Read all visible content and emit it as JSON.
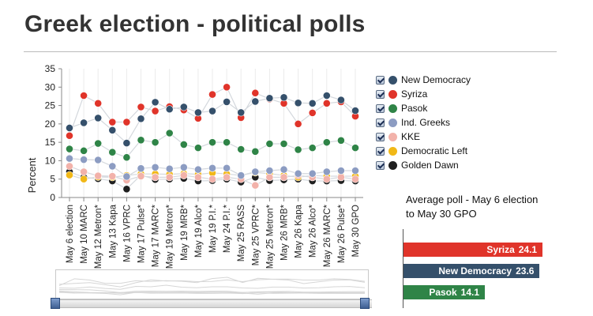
{
  "title": "Greek election - political polls",
  "chart_data": {
    "type": "line",
    "ylabel": "Percent",
    "ylim": [
      0,
      35
    ],
    "yticks": [
      0,
      5,
      10,
      15,
      20,
      25,
      30,
      35
    ],
    "categories": [
      "May 6 election",
      "May 10 MARC",
      "May 12 Metron*",
      "May 13 Kapa",
      "May 16 VPRC",
      "May 17 Pulse*",
      "May 17 MARC*",
      "May 19 Metron*",
      "May 19 MRB*",
      "May 19 Alco*",
      "May 19 P.I.*",
      "May 24 P.I.*",
      "May 25 RASS",
      "May 25 VPRC*",
      "May 25 Metron*",
      "May 26 MRB*",
      "May 26 Kapa",
      "May 26 Alco*",
      "May 26 MARC*",
      "May 26 Pulse*",
      "May 30 GPO"
    ],
    "series": [
      {
        "name": "New Democracy",
        "color": "#35506b",
        "values": [
          18.9,
          20.3,
          21.6,
          18.3,
          14.8,
          21.4,
          25.9,
          24.0,
          24.6,
          23.1,
          23.5,
          26.0,
          23.1,
          26.1,
          27.0,
          27.2,
          25.7,
          25.6,
          27.7,
          26.5,
          23.6
        ]
      },
      {
        "name": "Syriza",
        "color": "#e0342a",
        "values": [
          16.8,
          27.7,
          25.6,
          20.5,
          20.5,
          24.6,
          23.5,
          24.7,
          23.8,
          21.5,
          28.0,
          30.0,
          21.7,
          28.4,
          26.8,
          25.6,
          20.0,
          23.0,
          25.6,
          26.0,
          22.1
        ]
      },
      {
        "name": "Pasok",
        "color": "#2f8447",
        "values": [
          13.2,
          12.7,
          14.7,
          12.3,
          10.9,
          15.6,
          15.0,
          17.5,
          14.4,
          13.5,
          15.0,
          15.0,
          13.1,
          12.5,
          14.6,
          14.6,
          13.0,
          13.5,
          15.0,
          15.5,
          13.5
        ]
      },
      {
        "name": "Ind. Greeks",
        "color": "#8c9cc2",
        "values": [
          10.6,
          10.3,
          10.2,
          8.5,
          5.7,
          7.9,
          8.2,
          7.8,
          8.2,
          7.6,
          8.0,
          8.0,
          6.0,
          7.0,
          7.3,
          7.6,
          6.5,
          6.5,
          7.0,
          7.3,
          7.3
        ]
      },
      {
        "name": "KKE",
        "color": "#f2b2aa",
        "values": [
          8.5,
          7.0,
          5.9,
          5.8,
          4.7,
          5.8,
          5.5,
          5.5,
          6.0,
          5.5,
          5.0,
          5.5,
          5.0,
          3.3,
          5.5,
          5.5,
          6.0,
          5.5,
          5.0,
          5.5,
          5.0
        ]
      },
      {
        "name": "Democratic Left",
        "color": "#f1b817",
        "values": [
          6.1,
          5.0,
          5.6,
          5.5,
          6.0,
          6.4,
          6.4,
          6.3,
          6.5,
          6.3,
          6.7,
          6.4,
          6.0,
          6.8,
          6.5,
          6.0,
          5.5,
          6.0,
          5.8,
          5.8,
          5.8
        ]
      },
      {
        "name": "Golden Dawn",
        "color": "#1f1f1f",
        "values": [
          7.0,
          5.5,
          5.1,
          4.5,
          2.3,
          6.1,
          4.9,
          5.0,
          5.2,
          4.5,
          4.6,
          5.0,
          4.2,
          5.5,
          4.6,
          4.8,
          5.0,
          4.5,
          4.5,
          4.6,
          4.5
        ]
      }
    ]
  },
  "average": {
    "title": "Average poll - May 6 election to May 30 GPO",
    "max": 26,
    "bars": [
      {
        "label": "Syriza",
        "value": "24.1",
        "color": "#e0342a"
      },
      {
        "label": "New Democracy",
        "value": "23.6",
        "color": "#35506b"
      },
      {
        "label": "Pasok",
        "value": "14.1",
        "color": "#2f8447"
      }
    ]
  }
}
